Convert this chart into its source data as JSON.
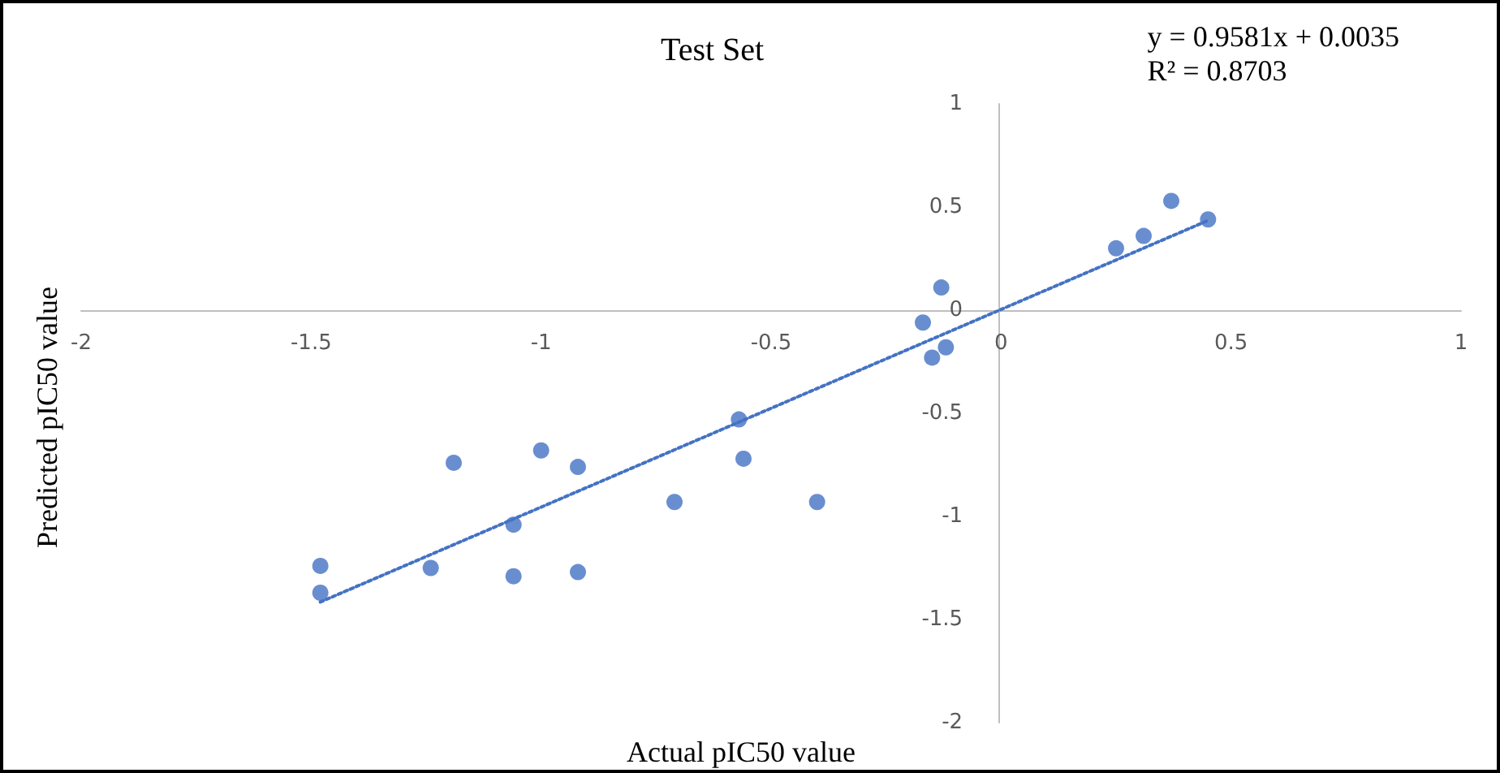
{
  "chart_data": {
    "type": "scatter",
    "title": "Test Set",
    "xlabel": "Actual pIC50 value",
    "ylabel": "Predicted pIC50 value",
    "annotations": [
      "y = 0.9581x + 0.0035",
      "R² = 0.8703"
    ],
    "xlim": [
      -2,
      1
    ],
    "xticks": [
      -2,
      -1.5,
      -1,
      -0.5,
      0,
      0.5,
      1
    ],
    "ylim": [
      -2,
      1
    ],
    "yticks": [
      -2,
      -1.5,
      -1,
      -0.5,
      0,
      0.5,
      1
    ],
    "marker": "circle",
    "series": [
      {
        "color": "#4472c4",
        "x": [
          -1.48,
          -1.48,
          -1.19,
          -1.24,
          -1.06,
          -1.06,
          -1.0,
          -0.92,
          -0.92,
          -0.71,
          -0.57,
          -0.56,
          -0.4,
          -0.13,
          -0.17,
          -0.15,
          -0.12,
          0.25,
          0.31,
          0.37,
          0.45
        ],
        "values": [
          -1.24,
          -1.37,
          -0.74,
          -1.25,
          -1.04,
          -1.29,
          -0.68,
          -0.76,
          -1.27,
          -0.93,
          -0.53,
          -0.72,
          -0.93,
          0.11,
          -0.06,
          -0.23,
          -0.18,
          0.3,
          0.36,
          0.53,
          0.44
        ]
      },
      {
        "type": "line",
        "color": "#4472c4",
        "line_style": "dotted",
        "marker": "none",
        "x": [
          -1.48,
          0.45
        ],
        "values": [
          -1.415,
          0.435
        ]
      }
    ]
  }
}
